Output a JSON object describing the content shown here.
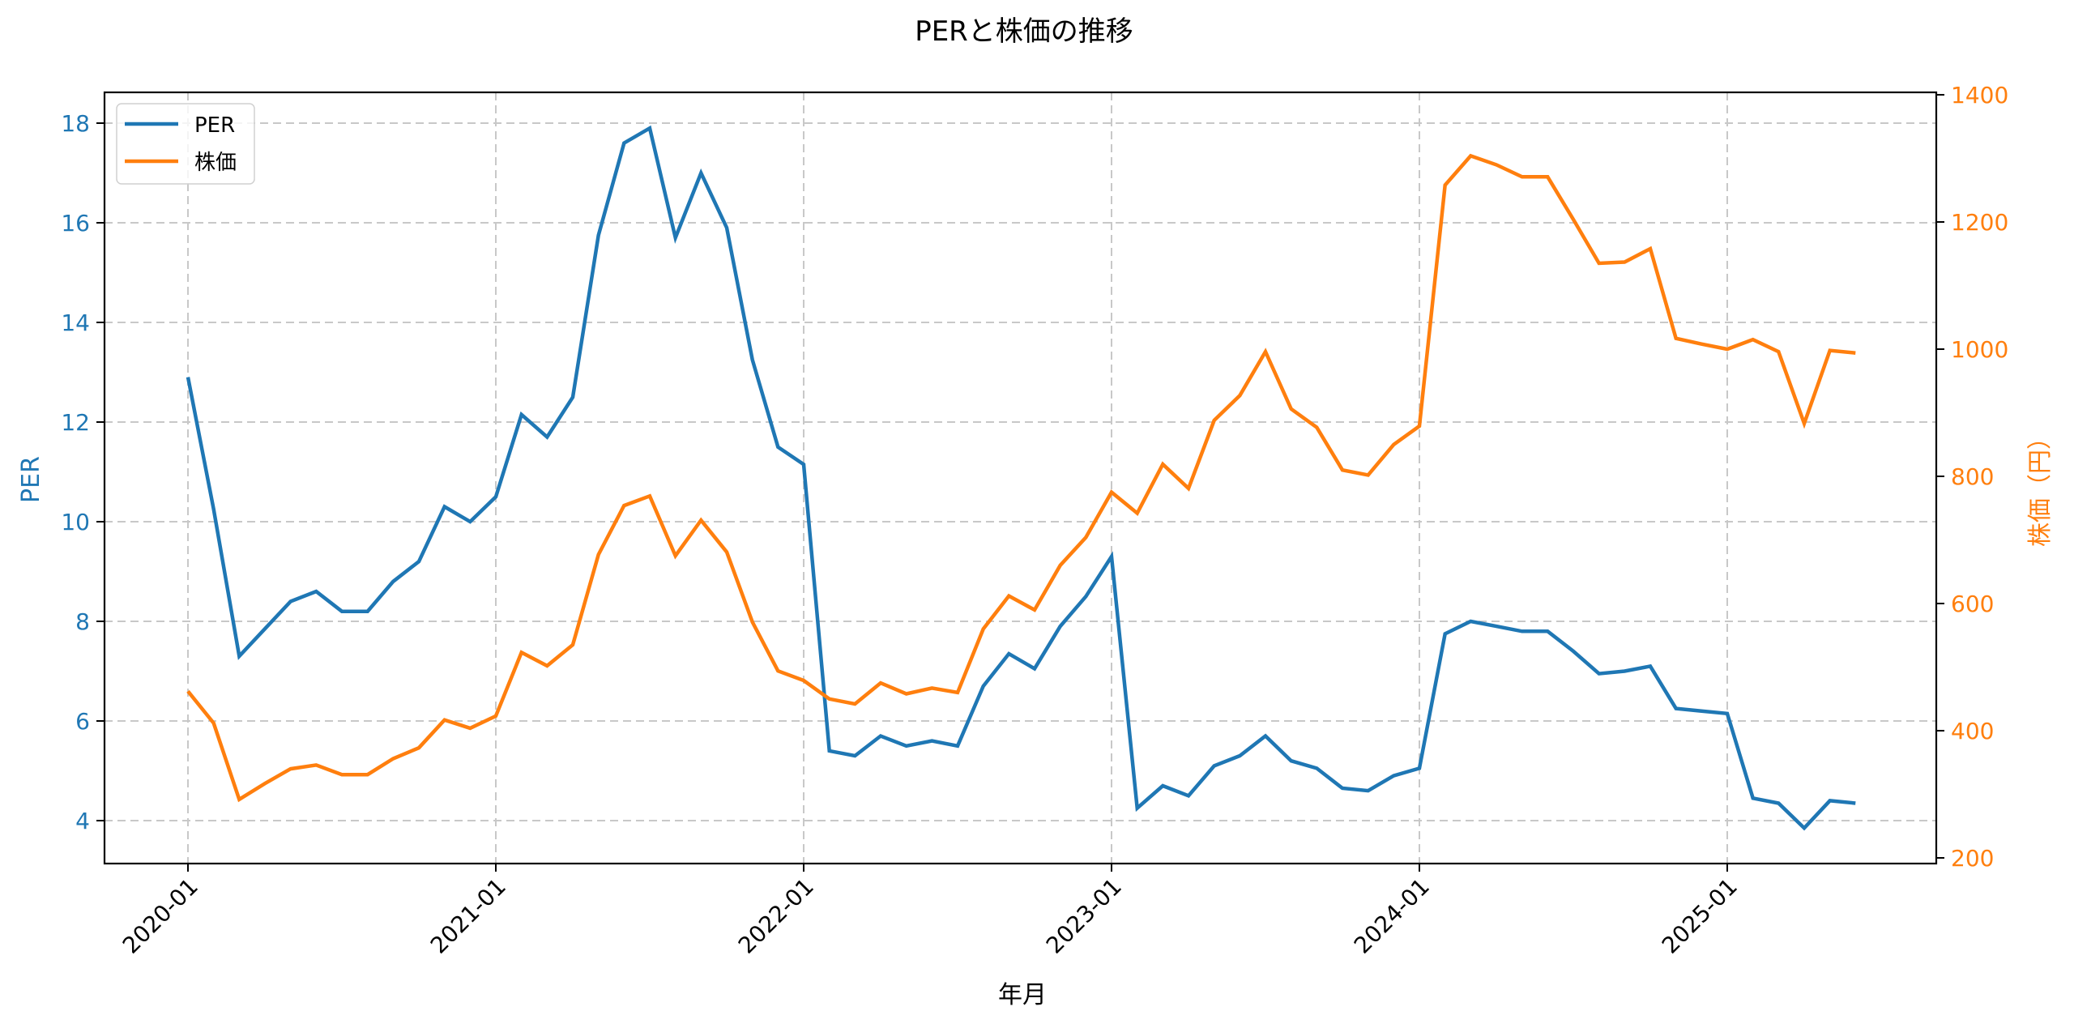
{
  "chart_data": {
    "type": "line",
    "title": "PERと株価の推移",
    "xlabel": "年月",
    "ylabel": "PER",
    "ylabel_right": "株価（円）",
    "x_tick_labels": [
      "2020-01",
      "2021-01",
      "2022-01",
      "2023-01",
      "2024-01",
      "2025-01"
    ],
    "y_ticks_left": [
      4,
      6,
      8,
      10,
      12,
      14,
      16,
      18
    ],
    "y_ticks_right": [
      200,
      400,
      600,
      800,
      1000,
      1200,
      1400
    ],
    "ylim_left": [
      3.2,
      18.6
    ],
    "ylim_right": [
      190,
      1405
    ],
    "grid": true,
    "legend_position": "upper left",
    "x": [
      "2020-01",
      "2020-02",
      "2020-03",
      "2020-04",
      "2020-05",
      "2020-06",
      "2020-07",
      "2020-08",
      "2020-09",
      "2020-10",
      "2020-11",
      "2020-12",
      "2021-01",
      "2021-02",
      "2021-03",
      "2021-04",
      "2021-05",
      "2021-06",
      "2021-07",
      "2021-08",
      "2021-09",
      "2021-10",
      "2021-11",
      "2021-12",
      "2022-01",
      "2022-02",
      "2022-03",
      "2022-04",
      "2022-05",
      "2022-06",
      "2022-07",
      "2022-08",
      "2022-09",
      "2022-10",
      "2022-11",
      "2022-12",
      "2023-01",
      "2023-02",
      "2023-03",
      "2023-04",
      "2023-05",
      "2023-06",
      "2023-07",
      "2023-08",
      "2023-09",
      "2023-10",
      "2023-11",
      "2023-12",
      "2024-01",
      "2024-02",
      "2024-03",
      "2024-04",
      "2024-05",
      "2024-06",
      "2024-07",
      "2024-08",
      "2024-09",
      "2024-10",
      "2024-11",
      "2024-12",
      "2025-01",
      "2025-02",
      "2025-03",
      "2025-04",
      "2025-05",
      "2025-06"
    ],
    "series": [
      {
        "name": "PER",
        "axis": "left",
        "color": "#1f77b4",
        "values": [
          12.9,
          10.25,
          7.3,
          7.85,
          8.4,
          8.6,
          8.2,
          8.2,
          8.8,
          9.2,
          10.3,
          10.0,
          10.5,
          12.15,
          11.7,
          12.5,
          15.75,
          17.6,
          17.9,
          15.7,
          17.0,
          15.9,
          13.25,
          11.5,
          11.15,
          5.4,
          5.3,
          5.7,
          5.5,
          5.6,
          5.5,
          6.7,
          7.35,
          7.05,
          7.9,
          8.5,
          9.3,
          4.25,
          4.7,
          4.5,
          5.1,
          5.3,
          5.7,
          5.2,
          5.05,
          4.65,
          4.6,
          4.9,
          5.05,
          7.75,
          8.0,
          7.9,
          7.8,
          7.8,
          7.4,
          6.95,
          7.0,
          7.1,
          6.25,
          6.2,
          6.15,
          4.45,
          4.35,
          3.85,
          4.4,
          4.35
        ]
      },
      {
        "name": "株価",
        "axis": "right",
        "color": "#ff7f0e",
        "values": [
          462,
          412,
          292,
          317,
          340,
          346,
          331,
          331,
          356,
          373,
          417,
          404,
          423,
          523,
          502,
          535,
          677,
          754,
          769,
          675,
          731,
          681,
          571,
          494,
          479,
          450,
          442,
          475,
          458,
          467,
          460,
          560,
          612,
          590,
          660,
          704,
          775,
          742,
          819,
          781,
          888,
          927,
          996,
          906,
          877,
          810,
          802,
          850,
          879,
          1258,
          1304,
          1290,
          1271,
          1271,
          1204,
          1135,
          1137,
          1158,
          1017,
          1008,
          1000,
          1015,
          996,
          883,
          998,
          994
        ]
      }
    ]
  },
  "legend": {
    "items": [
      {
        "label": "PER",
        "color": "#1f77b4"
      },
      {
        "label": "株価",
        "color": "#ff7f0e"
      }
    ]
  }
}
